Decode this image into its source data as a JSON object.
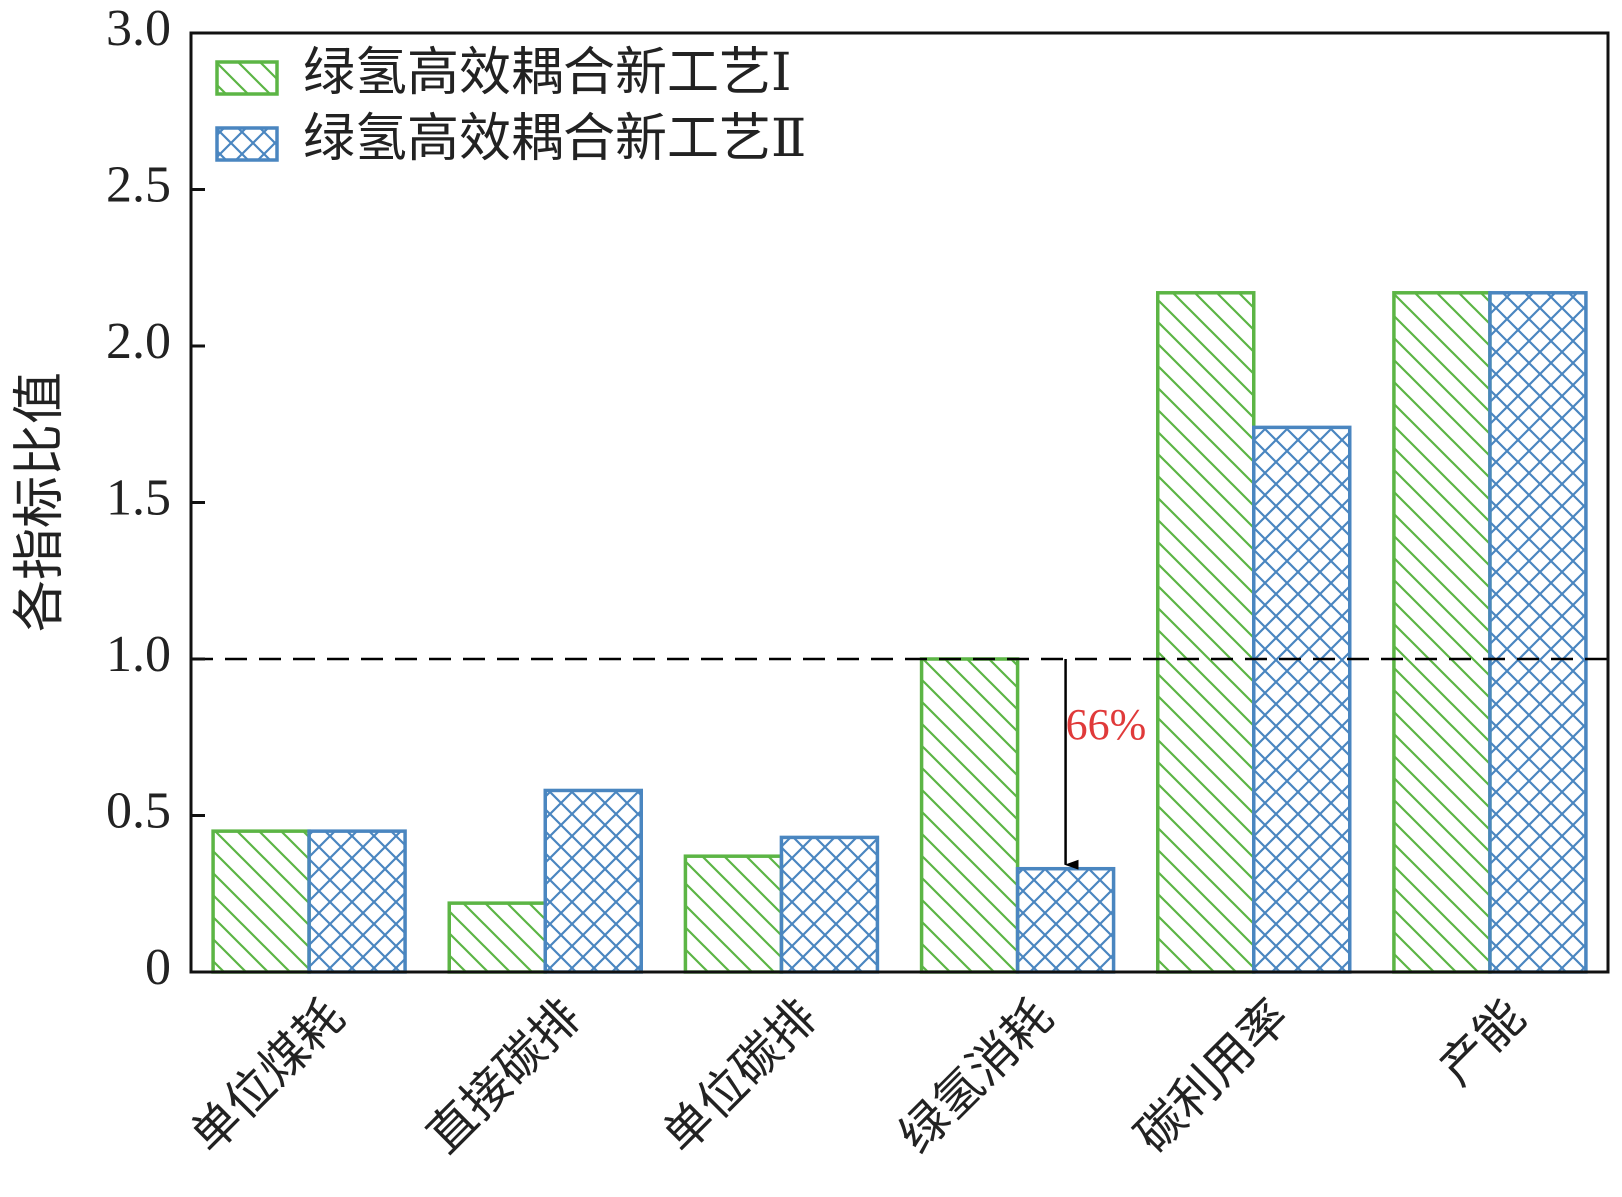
{
  "chart_data": {
    "type": "bar",
    "y_label": "各指标比值",
    "categories": [
      "单位煤耗",
      "直接碳排",
      "单位碳排",
      "绿氢消耗",
      "碳利用率",
      "产能"
    ],
    "series": [
      {
        "name": "绿氢高效耦合新工艺Ⅰ",
        "color": "#5cb545",
        "hatch": "diagonal",
        "values": [
          0.45,
          0.22,
          0.37,
          1.0,
          2.17,
          2.17
        ]
      },
      {
        "name": "绿氢高效耦合新工艺Ⅱ",
        "color": "#4a86c0",
        "hatch": "crosshatch",
        "values": [
          0.45,
          0.58,
          0.43,
          0.33,
          1.74,
          2.17
        ]
      }
    ],
    "ylim": [
      0,
      3
    ],
    "yticks": [
      0,
      0.5,
      {
        "value": 1,
        "label": "1.0"
      },
      {
        "value": 1.5,
        "label": "1.5"
      },
      {
        "value": 2,
        "label": "2.0"
      },
      {
        "value": 2.5,
        "label": "2.5"
      },
      {
        "value": 3,
        "label": "3.0"
      }
    ],
    "reference_line": 1,
    "annotation": {
      "text": "66%",
      "color": "#e03a3a"
    },
    "legend": "upper left"
  }
}
